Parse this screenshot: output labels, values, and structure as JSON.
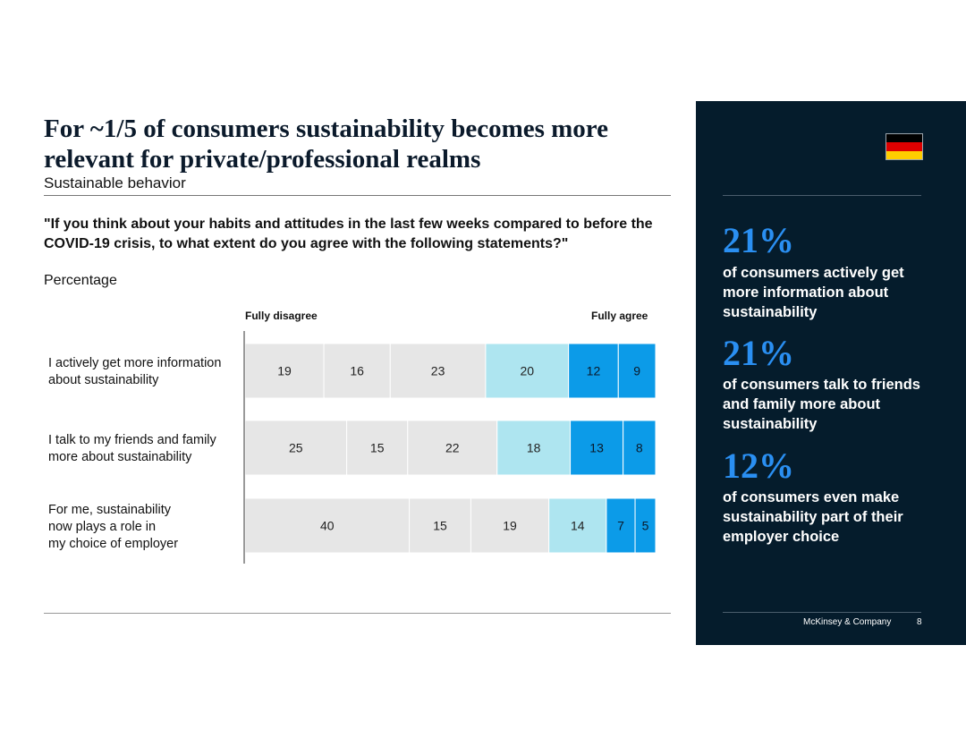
{
  "title": "For ~1/5 of consumers sustainability becomes more relevant for private/professional realms",
  "subtitle": "Sustainable behavior",
  "question": "\"If you think about your habits and attitudes in the last few weeks compared to before the COVID-19 crisis, to what extent do you agree with the following statements?\"",
  "unit": "Percentage",
  "chart_data": {
    "type": "bar",
    "stacked": true,
    "orientation": "horizontal",
    "scale_left_label": "Fully disagree",
    "scale_right_label": "Fully agree",
    "categories": [
      "I actively get more information about sustainability",
      "I talk to my friends and family more about sustainability",
      "For me, sustainability now plays a role in my choice of employer"
    ],
    "category_lines": [
      [
        "I actively get more information",
        "about sustainability"
      ],
      [
        "I talk to my friends and family",
        "more about sustainability"
      ],
      [
        "For me, sustainability",
        "now plays a role in",
        "my choice of employer"
      ]
    ],
    "series_colors": [
      "#e6e6e6",
      "#e6e6e6",
      "#e6e6e6",
      "#aee5f0",
      "#0c9be8",
      "#0c9be8"
    ],
    "values": [
      [
        19,
        16,
        23,
        20,
        12,
        9
      ],
      [
        25,
        15,
        22,
        18,
        13,
        8
      ],
      [
        40,
        15,
        19,
        14,
        7,
        5
      ]
    ]
  },
  "panel": {
    "flag_colors": [
      "#000000",
      "#dd0000",
      "#ffce00"
    ],
    "stats": [
      {
        "value": "21%",
        "text": "of consumers actively get more information about sustainability"
      },
      {
        "value": "21%",
        "text": "of consumers talk to friends and family more about sustainability"
      },
      {
        "value": "12%",
        "text": "of consumers even make sustainability part of their employer choice"
      }
    ],
    "footer_brand": "McKinsey & Company",
    "footer_page": "8"
  }
}
